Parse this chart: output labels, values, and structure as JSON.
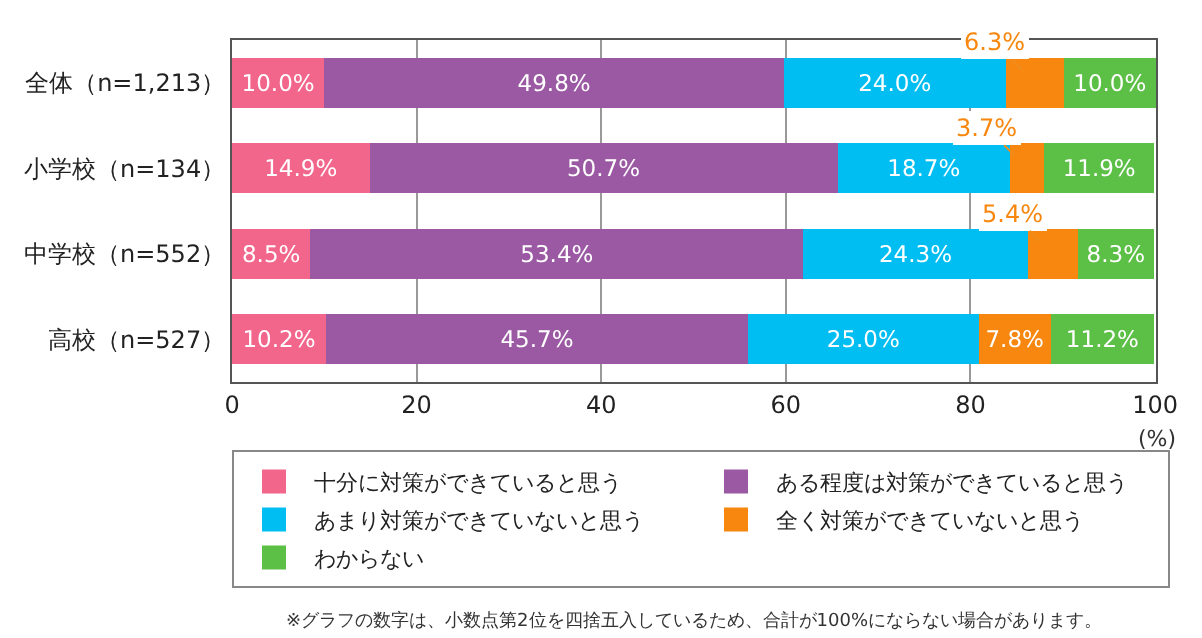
{
  "chart_data": {
    "type": "bar",
    "orientation": "horizontal",
    "stacked": true,
    "categories": [
      "全体（n=1,213）",
      "小学校（n=134）",
      "中学校（n=552）",
      "高校（n=527）"
    ],
    "series": [
      {
        "name": "十分に対策ができていると思う",
        "color": "#f2668b",
        "values": [
          10.0,
          14.9,
          8.5,
          10.2
        ],
        "value_labels": [
          "10.0%",
          "14.9%",
          "8.5%",
          "10.2%"
        ]
      },
      {
        "name": "ある程度は対策ができていると思う",
        "color": "#9b59a3",
        "values": [
          49.8,
          50.7,
          53.4,
          45.7
        ],
        "value_labels": [
          "49.8%",
          "50.7%",
          "53.4%",
          "45.7%"
        ]
      },
      {
        "name": "あまり対策ができていないと思う",
        "color": "#00bdf2",
        "values": [
          24.0,
          18.7,
          24.3,
          25.0
        ],
        "value_labels": [
          "24.0%",
          "18.7%",
          "24.3%",
          "25.0%"
        ]
      },
      {
        "name": "全く対策ができていないと思う",
        "color": "#f7870f",
        "values": [
          6.3,
          3.7,
          5.4,
          7.8
        ],
        "value_labels": [
          "6.3%",
          "3.7%",
          "5.4%",
          "7.8%"
        ]
      },
      {
        "name": "わからない",
        "color": "#5cbf46",
        "values": [
          10.0,
          11.9,
          8.3,
          11.2
        ],
        "value_labels": [
          "10.0%",
          "11.9%",
          "8.3%",
          "11.2%"
        ]
      }
    ],
    "xlim": [
      0,
      100.1
    ],
    "xticks": [
      0,
      20,
      40,
      60,
      80,
      100
    ],
    "xlabel": "(%)",
    "grid": "x",
    "legend": "bottom",
    "annotations": [
      "※グラフの数字は、小数点第2位を四捨五入しているため、合計が100%にならない場合があります。"
    ]
  }
}
